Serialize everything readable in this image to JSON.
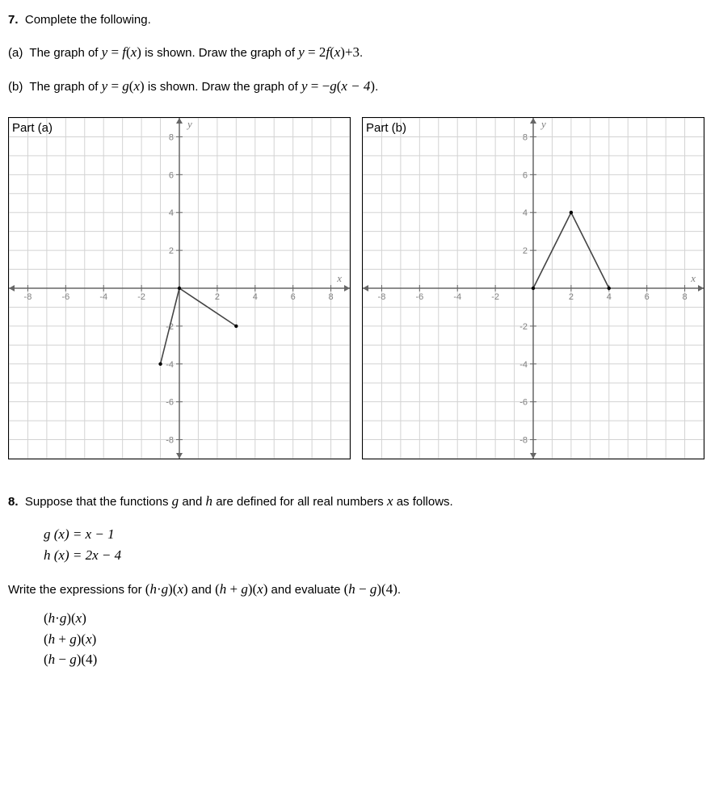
{
  "q7": {
    "number": "7.",
    "prompt": "Complete the following.",
    "partA": {
      "label": "(a)",
      "pre": "The graph of ",
      "eq1_lhs": "y",
      "eq1_rhs": "f",
      "eq1_arg_open": "(",
      "eq1_var": "x",
      "eq1_arg_close": ")",
      "mid": " is shown. Draw the graph of ",
      "eq2_lhs": "y",
      "eq2_coef": "2",
      "eq2_f": "f",
      "eq2_arg_open": "(",
      "eq2_var": "x",
      "eq2_arg_close": ")",
      "eq2_tail": "+3",
      "period": "."
    },
    "partB": {
      "label": "(b)",
      "pre": "The graph of ",
      "eq1_lhs": "y",
      "eq1_rhs": "g",
      "eq1_arg_open": "(",
      "eq1_var": "x",
      "eq1_arg_close": ")",
      "mid": " is shown. Draw the graph of ",
      "eq2_lhs": "y",
      "eq2_neg": "−",
      "eq2_g": "g",
      "eq2_arg_open": "(",
      "eq2_argtxt": "x − 4",
      "eq2_arg_close": ")",
      "period": "."
    },
    "graphA": {
      "label": "Part (a)",
      "xmin": -9,
      "xmax": 9,
      "ymin": -9,
      "ymax": 9,
      "major_step": 2,
      "tick_labels_x": [
        -8,
        -6,
        -4,
        -2,
        2,
        4,
        6,
        8
      ],
      "tick_labels_y": [
        -8,
        -6,
        -4,
        -2,
        2,
        4,
        6,
        8
      ],
      "grid_color": "#d3d3d3",
      "axis_color": "#666666",
      "tick_label_color": "#808080",
      "curve_color": "#444444",
      "curve_width": 1.6,
      "y_label": "y",
      "x_label": "x",
      "point_fill": "#000000",
      "segments": [
        {
          "points": [
            [
              -1,
              -4
            ],
            [
              0,
              0
            ]
          ]
        },
        {
          "points": [
            [
              0,
              0
            ],
            [
              3,
              -2
            ]
          ]
        }
      ],
      "endpoints": [
        [
          -1,
          -4
        ],
        [
          0,
          0
        ],
        [
          3,
          -2
        ]
      ]
    },
    "graphB": {
      "label": "Part (b)",
      "xmin": -9,
      "xmax": 9,
      "ymin": -9,
      "ymax": 9,
      "major_step": 2,
      "tick_labels_x": [
        -8,
        -6,
        -4,
        -2,
        2,
        4,
        6,
        8
      ],
      "tick_labels_y": [
        -8,
        -6,
        -4,
        -2,
        2,
        4,
        6,
        8
      ],
      "grid_color": "#d3d3d3",
      "axis_color": "#666666",
      "tick_label_color": "#808080",
      "curve_color": "#444444",
      "curve_width": 1.6,
      "y_label": "y",
      "x_label": "x",
      "point_fill": "#000000",
      "segments": [
        {
          "points": [
            [
              0,
              0
            ],
            [
              2,
              4
            ]
          ]
        },
        {
          "points": [
            [
              2,
              4
            ],
            [
              4,
              0
            ]
          ]
        }
      ],
      "endpoints": [
        [
          0,
          0
        ],
        [
          2,
          4
        ],
        [
          4,
          0
        ]
      ]
    }
  },
  "q8": {
    "number": "8.",
    "prompt_pre": "Suppose that the functions ",
    "g": "g",
    "and1": " and ",
    "h": "h",
    "prompt_mid": " are defined for all real numbers ",
    "x": "x",
    "prompt_post": " as follows.",
    "def_g": "g (x) = x − 1",
    "def_h": "h (x) = 2x − 4",
    "task_pre": "Write the expressions for ",
    "hg": "(h·g)(x)",
    "and2": " and ",
    "hplusg": "(h + g)(x)",
    "and3": " and evaluate ",
    "hminusg4": "(h − g)(4)",
    "task_post": ".",
    "eval1": "(h·g)(x)",
    "eval2": "(h + g)(x)",
    "eval3": "(h − g)(4)"
  }
}
